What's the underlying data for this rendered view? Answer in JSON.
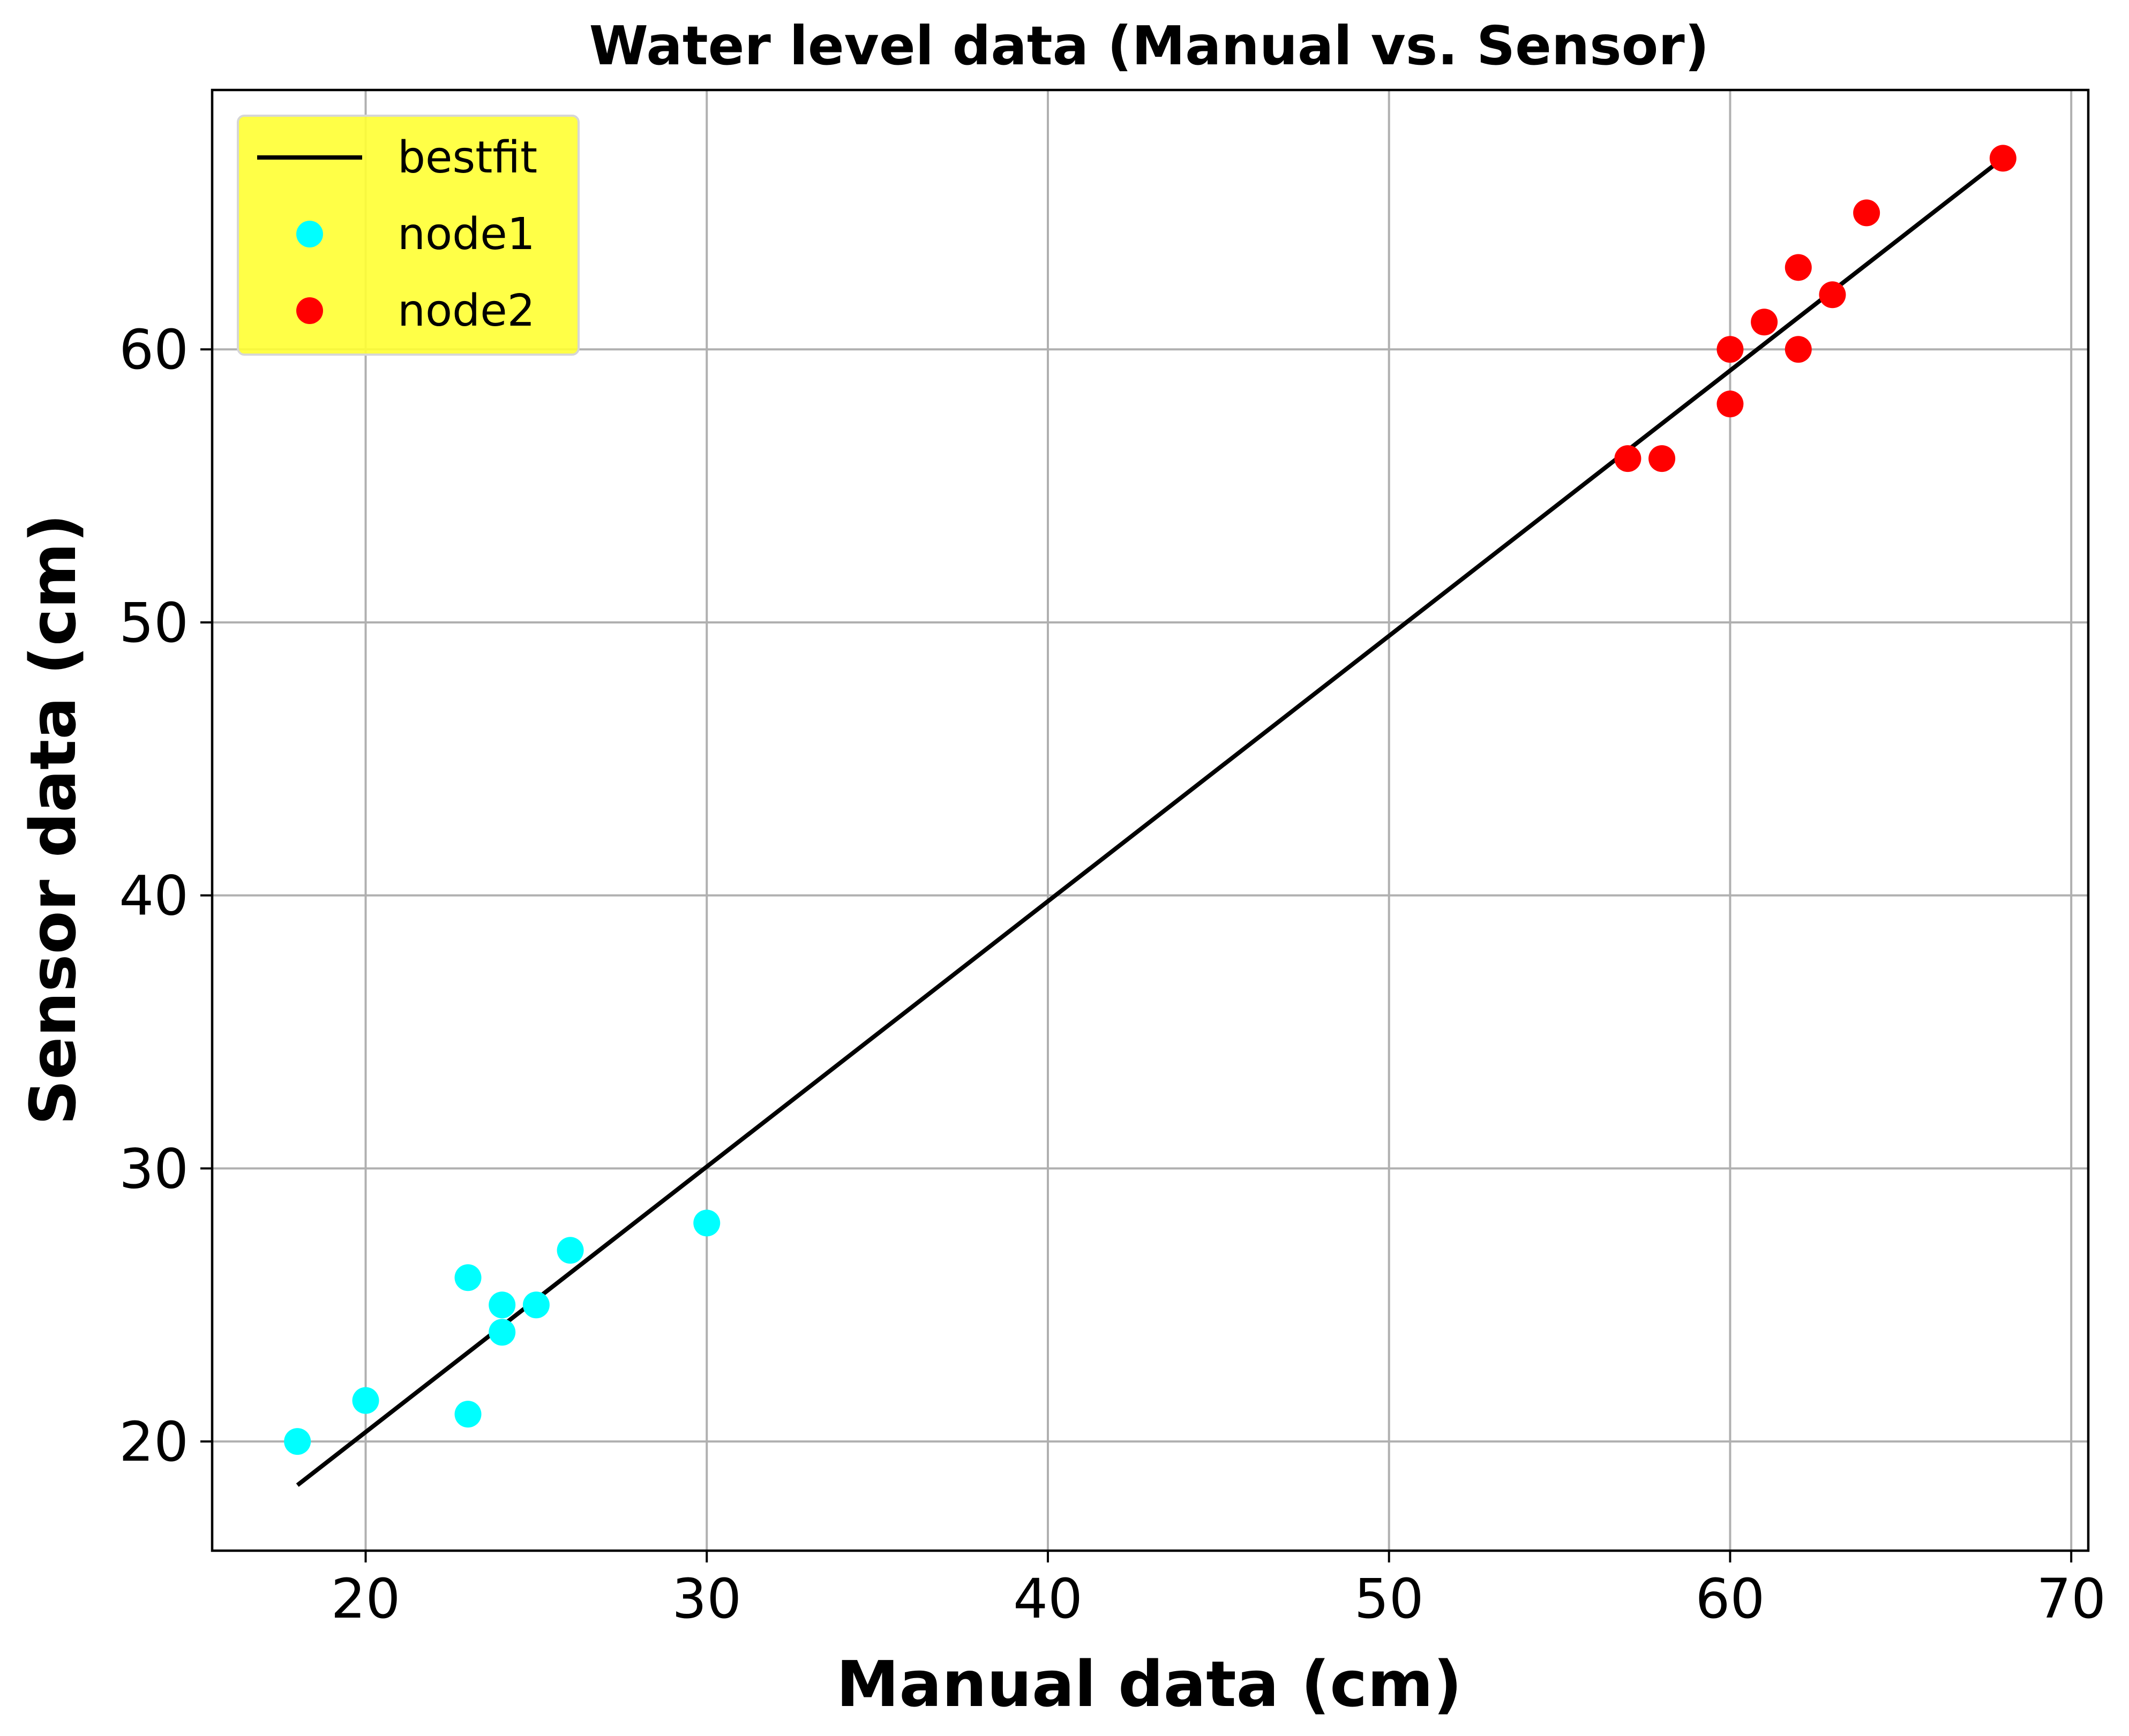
{
  "chart_data": {
    "type": "scatter",
    "title": "Water level data (Manual vs. Sensor)",
    "xlabel": "Manual data (cm)",
    "ylabel": "Sensor data (cm)",
    "xlim": [
      15.5,
      70.5
    ],
    "ylim": [
      16.0,
      69.5
    ],
    "xticks": [
      20,
      30,
      40,
      50,
      60,
      70
    ],
    "yticks": [
      20,
      30,
      40,
      50,
      60
    ],
    "grid": true,
    "legend_position": "top-left",
    "legend_background": "#ffff33",
    "series": [
      {
        "name": "bestfit",
        "kind": "line",
        "color": "#000000",
        "x": [
          18,
          68
        ],
        "y": [
          18.4,
          67.0
        ]
      },
      {
        "name": "node1",
        "kind": "scatter",
        "color": "#00ffff",
        "x": [
          18,
          20,
          23,
          23,
          24,
          24,
          25,
          26,
          30
        ],
        "y": [
          20,
          21.5,
          21,
          26,
          24,
          25,
          25,
          27,
          28
        ]
      },
      {
        "name": "node2",
        "kind": "scatter",
        "color": "#ff0000",
        "x": [
          57,
          58,
          60,
          60,
          61,
          62,
          62,
          63,
          64,
          68
        ],
        "y": [
          56,
          56,
          58,
          60,
          61,
          60,
          63,
          62,
          65,
          67
        ]
      }
    ]
  }
}
